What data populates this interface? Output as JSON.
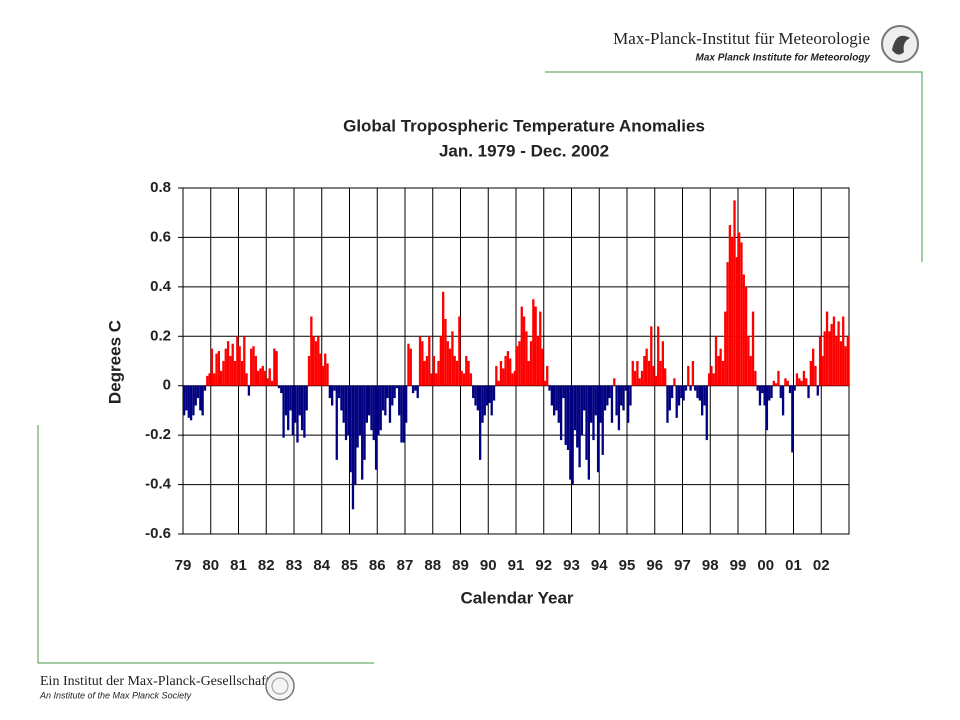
{
  "header": {
    "title": "Max-Planck-Institut für Meteorologie",
    "subtitle": "Max Planck Institute for Meteorology"
  },
  "footer": {
    "title": "Ein Institut der Max-Planck-Gesellschaft",
    "subtitle": "An Institute of the Max Planck Society"
  },
  "chart_data": {
    "type": "bar",
    "title": "Global  Tropospheric Temperature Anomalies",
    "subtitle": "Jan. 1979 - Dec. 2002",
    "x_label": "Calendar Year",
    "y_label": "Degrees C",
    "ylim": [
      -0.6,
      0.8
    ],
    "yticks": [
      0.8,
      0.6,
      0.4,
      0.2,
      0,
      -0.2,
      -0.4,
      -0.6
    ],
    "grid": true,
    "positive_color": "#ff0000",
    "negative_color": "#000080",
    "categories": [
      "79",
      null,
      null,
      null,
      null,
      null,
      null,
      null,
      null,
      null,
      null,
      null,
      "80",
      null,
      null,
      null,
      null,
      null,
      null,
      null,
      null,
      null,
      null,
      null,
      "81",
      null,
      null,
      null,
      null,
      null,
      null,
      null,
      null,
      null,
      null,
      null,
      "82",
      null,
      null,
      null,
      null,
      null,
      null,
      null,
      null,
      null,
      null,
      null,
      "83",
      null,
      null,
      null,
      null,
      null,
      null,
      null,
      null,
      null,
      null,
      null,
      "84",
      null,
      null,
      null,
      null,
      null,
      null,
      null,
      null,
      null,
      null,
      null,
      "85",
      null,
      null,
      null,
      null,
      null,
      null,
      null,
      null,
      null,
      null,
      null,
      "86",
      null,
      null,
      null,
      null,
      null,
      null,
      null,
      null,
      null,
      null,
      null,
      "87",
      null,
      null,
      null,
      null,
      null,
      null,
      null,
      null,
      null,
      null,
      null,
      "88",
      null,
      null,
      null,
      null,
      null,
      null,
      null,
      null,
      null,
      null,
      null,
      "89",
      null,
      null,
      null,
      null,
      null,
      null,
      null,
      null,
      null,
      null,
      null,
      "90",
      null,
      null,
      null,
      null,
      null,
      null,
      null,
      null,
      null,
      null,
      null,
      "91",
      null,
      null,
      null,
      null,
      null,
      null,
      null,
      null,
      null,
      null,
      null,
      "92",
      null,
      null,
      null,
      null,
      null,
      null,
      null,
      null,
      null,
      null,
      null,
      "93",
      null,
      null,
      null,
      null,
      null,
      null,
      null,
      null,
      null,
      null,
      null,
      "94",
      null,
      null,
      null,
      null,
      null,
      null,
      null,
      null,
      null,
      null,
      null,
      "95",
      null,
      null,
      null,
      null,
      null,
      null,
      null,
      null,
      null,
      null,
      null,
      "96",
      null,
      null,
      null,
      null,
      null,
      null,
      null,
      null,
      null,
      null,
      null,
      "97",
      null,
      null,
      null,
      null,
      null,
      null,
      null,
      null,
      null,
      null,
      null,
      "98",
      null,
      null,
      null,
      null,
      null,
      null,
      null,
      null,
      null,
      null,
      null,
      "99",
      null,
      null,
      null,
      null,
      null,
      null,
      null,
      null,
      null,
      null,
      null,
      "00",
      null,
      null,
      null,
      null,
      null,
      null,
      null,
      null,
      null,
      null,
      null,
      "01",
      null,
      null,
      null,
      null,
      null,
      null,
      null,
      null,
      null,
      null,
      null,
      "02",
      null,
      null,
      null,
      null,
      null,
      null,
      null,
      null,
      null,
      null,
      null
    ],
    "values": [
      -0.12,
      -0.1,
      -0.13,
      -0.14,
      -0.12,
      -0.08,
      -0.05,
      -0.1,
      -0.12,
      -0.02,
      0.04,
      0.05,
      0.15,
      0.05,
      0.13,
      0.14,
      0.06,
      0.1,
      0.15,
      0.18,
      0.12,
      0.17,
      0.1,
      0.2,
      0.16,
      0.1,
      0.2,
      0.05,
      -0.04,
      0.15,
      0.16,
      0.12,
      0.06,
      0.07,
      0.08,
      0.06,
      0.03,
      0.07,
      0.02,
      0.15,
      0.14,
      -0.01,
      -0.03,
      -0.21,
      -0.12,
      -0.18,
      -0.1,
      -0.2,
      -0.15,
      -0.23,
      -0.12,
      -0.18,
      -0.21,
      -0.1,
      0.12,
      0.28,
      0.2,
      0.18,
      0.2,
      0.13,
      0.08,
      0.13,
      0.09,
      -0.05,
      -0.08,
      -0.02,
      -0.3,
      -0.05,
      -0.1,
      -0.15,
      -0.22,
      -0.2,
      -0.35,
      -0.5,
      -0.4,
      -0.25,
      -0.2,
      -0.38,
      -0.3,
      -0.15,
      -0.12,
      -0.18,
      -0.22,
      -0.34,
      -0.2,
      -0.18,
      -0.1,
      -0.12,
      -0.05,
      -0.15,
      -0.08,
      -0.05,
      -0.01,
      -0.12,
      -0.23,
      -0.23,
      -0.15,
      0.17,
      0.15,
      -0.03,
      -0.02,
      -0.05,
      0.2,
      0.18,
      0.1,
      0.12,
      0.2,
      0.05,
      0.12,
      0.05,
      0.1,
      0.2,
      0.38,
      0.27,
      0.18,
      0.15,
      0.22,
      0.12,
      0.1,
      0.28,
      0.06,
      0.05,
      0.12,
      0.1,
      0.05,
      -0.05,
      -0.08,
      -0.1,
      -0.3,
      -0.15,
      -0.12,
      -0.08,
      -0.07,
      -0.12,
      -0.06,
      0.08,
      0.02,
      0.1,
      0.07,
      0.12,
      0.14,
      0.11,
      0.05,
      0.06,
      0.16,
      0.18,
      0.32,
      0.28,
      0.22,
      0.1,
      0.18,
      0.35,
      0.32,
      0.2,
      0.3,
      0.15,
      0.02,
      0.08,
      -0.02,
      -0.08,
      -0.12,
      -0.1,
      -0.15,
      -0.22,
      -0.05,
      -0.24,
      -0.26,
      -0.38,
      -0.4,
      -0.18,
      -0.25,
      -0.33,
      -0.2,
      -0.1,
      -0.3,
      -0.38,
      -0.15,
      -0.22,
      -0.12,
      -0.35,
      -0.15,
      -0.28,
      -0.1,
      -0.08,
      -0.05,
      -0.15,
      0.03,
      -0.12,
      -0.18,
      -0.08,
      -0.1,
      -0.02,
      -0.15,
      -0.08,
      0.1,
      0.06,
      0.1,
      0.03,
      0.06,
      0.12,
      0.15,
      0.1,
      0.24,
      0.08,
      0.04,
      0.24,
      0.1,
      0.18,
      0.07,
      -0.15,
      -0.1,
      -0.05,
      0.03,
      -0.13,
      -0.08,
      -0.05,
      -0.06,
      -0.02,
      0.08,
      -0.02,
      0.1,
      -0.02,
      -0.05,
      -0.06,
      -0.12,
      -0.08,
      -0.22,
      0.05,
      0.08,
      0.05,
      0.2,
      0.12,
      0.15,
      0.1,
      0.3,
      0.5,
      0.65,
      0.6,
      0.75,
      0.52,
      0.62,
      0.58,
      0.45,
      0.4,
      0.2,
      0.12,
      0.3,
      0.06,
      -0.02,
      -0.08,
      -0.03,
      -0.08,
      -0.18,
      -0.06,
      -0.05,
      0.02,
      0.01,
      0.06,
      -0.05,
      -0.12,
      0.03,
      0.02,
      -0.03,
      -0.27,
      -0.02,
      0.05,
      0.03,
      0.02,
      0.06,
      0.03,
      -0.05,
      0.1,
      0.15,
      0.08,
      -0.04,
      0.2,
      0.12,
      0.22,
      0.3,
      0.22,
      0.25,
      0.28,
      0.2,
      0.26,
      0.18,
      0.28,
      0.16,
      0.2
    ]
  }
}
